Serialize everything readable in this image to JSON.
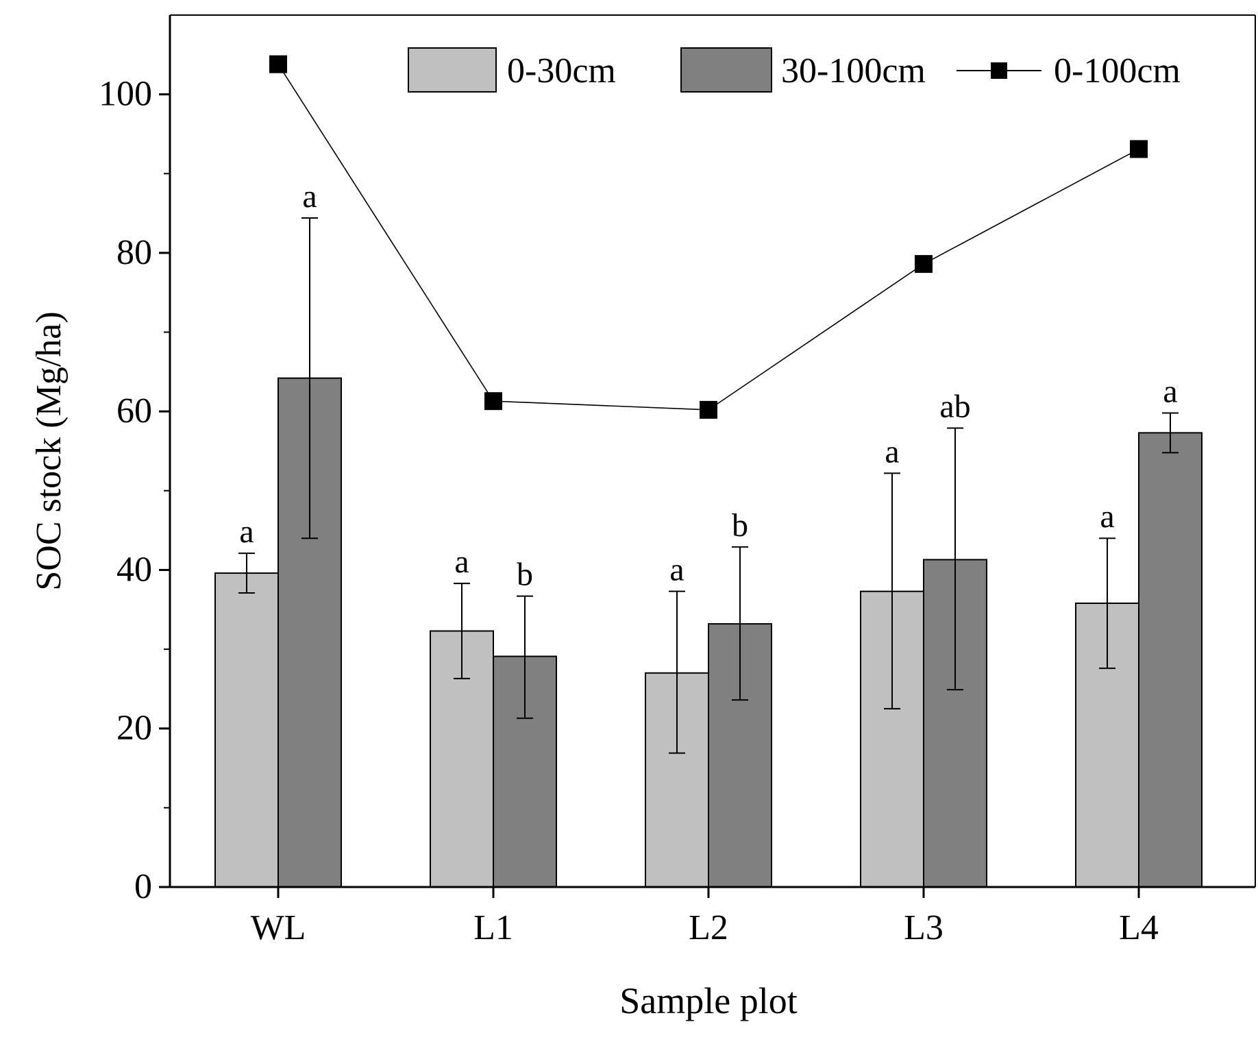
{
  "chart_data": {
    "type": "bar",
    "title": "",
    "xlabel": "Sample plot",
    "ylabel": "SOC stock (Mg/ha)",
    "ylim": [
      0,
      110
    ],
    "yticks": [
      0,
      20,
      40,
      60,
      80,
      100
    ],
    "ytick_labels": [
      "0",
      "20",
      "40",
      "60",
      "80",
      "100"
    ],
    "minor_ticks": [
      10,
      30,
      50,
      70,
      90
    ],
    "categories": [
      "WL",
      "L1",
      "L2",
      "L3",
      "L4"
    ],
    "legend_position": "top-right",
    "series": [
      {
        "name": "0-30cm",
        "type": "bar",
        "color": "#c0c0c0",
        "values": [
          39.6,
          32.3,
          27.0,
          37.3,
          35.8
        ],
        "error_low": [
          37.1,
          26.3,
          16.9,
          22.5,
          27.6
        ],
        "error_high": [
          42.1,
          38.3,
          37.3,
          52.2,
          44.0
        ],
        "letters": [
          "a",
          "a",
          "a",
          "a",
          "a"
        ]
      },
      {
        "name": "30-100cm",
        "type": "bar",
        "color": "#808080",
        "values": [
          64.2,
          29.1,
          33.2,
          41.3,
          57.3
        ],
        "error_low": [
          44.0,
          21.3,
          23.6,
          24.9,
          54.8
        ],
        "error_high": [
          84.4,
          36.7,
          42.9,
          57.9,
          59.8
        ],
        "letters": [
          "a",
          "b",
          "b",
          "ab",
          "a"
        ]
      },
      {
        "name": "0-100cm",
        "type": "line",
        "color": "#000000",
        "marker": "square",
        "values": [
          103.8,
          61.3,
          60.2,
          78.6,
          93.1
        ]
      }
    ]
  }
}
